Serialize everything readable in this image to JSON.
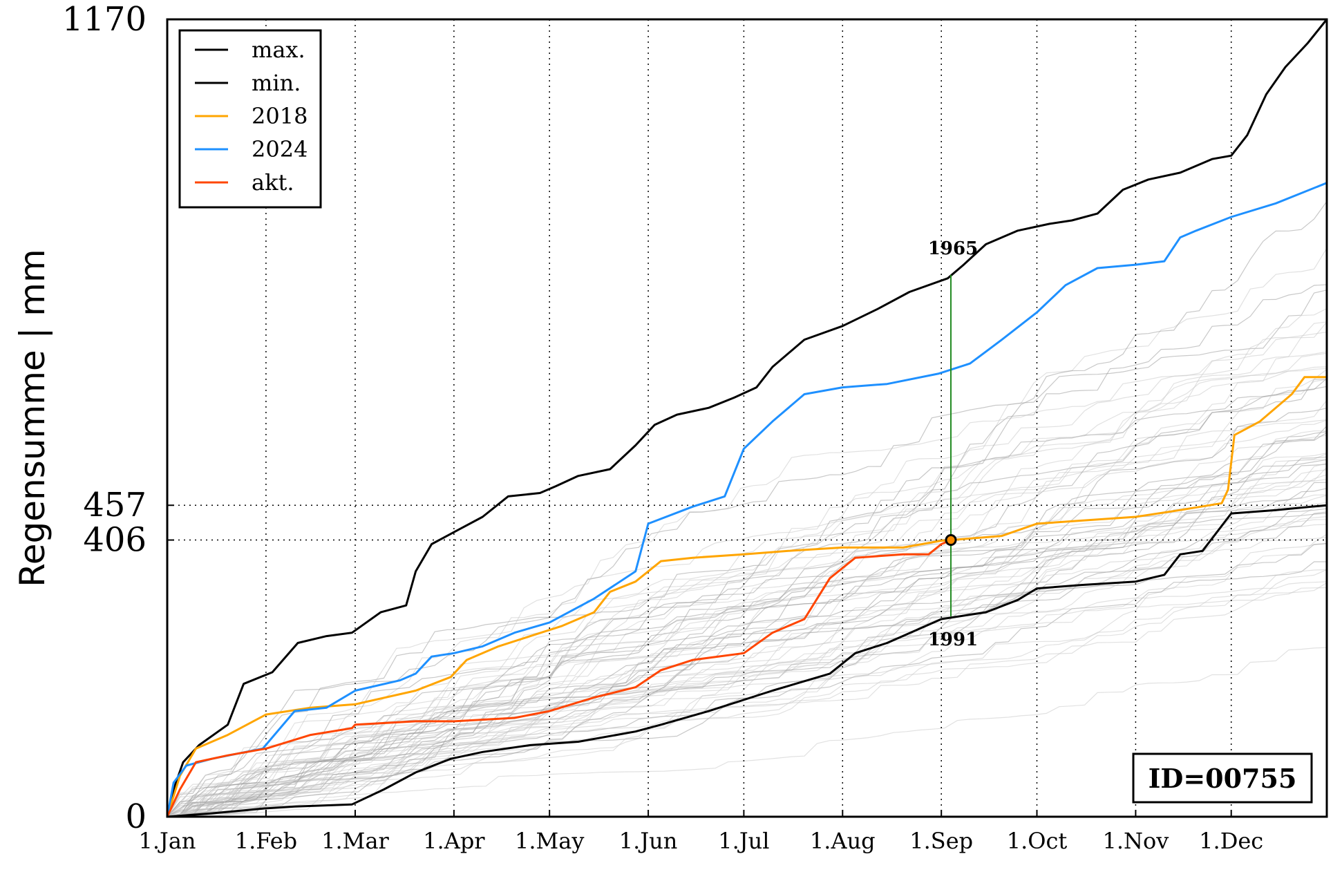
{
  "chart_data": {
    "type": "line",
    "title": "",
    "xlabel": "",
    "ylabel": "Regensumme | mm",
    "x_domain": [
      "1.Jan",
      "31.Dec"
    ],
    "ylim": [
      0,
      1170
    ],
    "x_ticks": [
      "1.Jan",
      "1.Feb",
      "1.Mar",
      "1.Apr",
      "1.May",
      "1.Jun",
      "1.Jul",
      "1.Aug",
      "1.Sep",
      "1.Oct",
      "1.Nov",
      "1.Dec"
    ],
    "y_ticks": [
      0,
      406,
      457,
      1170
    ],
    "grid": true,
    "legend_position": "upper-left",
    "legend": [
      {
        "label": "max.",
        "color": "#000000"
      },
      {
        "label": "min.",
        "color": "#000000"
      },
      {
        "label": "2018",
        "color": "#FFA500"
      },
      {
        "label": "2024",
        "color": "#1E90FF"
      },
      {
        "label": "akt.",
        "color": "#FF4500"
      }
    ],
    "series": [
      {
        "name": "max.",
        "color": "#000000",
        "width": 3,
        "points": [
          [
            "1.Jan",
            0
          ],
          [
            "3.Jan",
            40
          ],
          [
            "6.Jan",
            80
          ],
          [
            "11.Jan",
            105
          ],
          [
            "20.Jan",
            135
          ],
          [
            "25.Jan",
            195
          ],
          [
            "3.Feb",
            212
          ],
          [
            "11.Feb",
            255
          ],
          [
            "20.Feb",
            265
          ],
          [
            "28.Feb",
            270
          ],
          [
            "9.Mar",
            300
          ],
          [
            "17.Mar",
            310
          ],
          [
            "20.Mar",
            360
          ],
          [
            "25.Mar",
            400
          ],
          [
            "2.Apr",
            420
          ],
          [
            "10.Apr",
            440
          ],
          [
            "18.Apr",
            470
          ],
          [
            "28.Apr",
            475
          ],
          [
            "3.May",
            485
          ],
          [
            "10.May",
            500
          ],
          [
            "20.May",
            510
          ],
          [
            "28.May",
            545
          ],
          [
            "3.Jun",
            575
          ],
          [
            "10.Jun",
            590
          ],
          [
            "20.Jun",
            600
          ],
          [
            "28.Jun",
            615
          ],
          [
            "5.Jul",
            630
          ],
          [
            "10.Jul",
            660
          ],
          [
            "20.Jul",
            700
          ],
          [
            "1.Aug",
            720
          ],
          [
            "12.Aug",
            745
          ],
          [
            "22.Aug",
            770
          ],
          [
            "3.Sep",
            790
          ],
          [
            "8.Sep",
            810
          ],
          [
            "15.Sep",
            840
          ],
          [
            "25.Sep",
            860
          ],
          [
            "5.Oct",
            870
          ],
          [
            "12.Oct",
            875
          ],
          [
            "20.Oct",
            885
          ],
          [
            "28.Oct",
            920
          ],
          [
            "5.Nov",
            935
          ],
          [
            "15.Nov",
            945
          ],
          [
            "25.Nov",
            965
          ],
          [
            "1.Dec",
            970
          ],
          [
            "6.Dec",
            1000
          ],
          [
            "12.Dec",
            1060
          ],
          [
            "18.Dec",
            1100
          ],
          [
            "25.Dec",
            1135
          ],
          [
            "31.Dec",
            1170
          ]
        ]
      },
      {
        "name": "min.",
        "color": "#000000",
        "width": 3,
        "points": [
          [
            "1.Jan",
            0
          ],
          [
            "15.Jan",
            5
          ],
          [
            "31.Jan",
            12
          ],
          [
            "10.Feb",
            15
          ],
          [
            "28.Feb",
            18
          ],
          [
            "10.Mar",
            40
          ],
          [
            "20.Mar",
            65
          ],
          [
            "31.Mar",
            85
          ],
          [
            "10.Apr",
            95
          ],
          [
            "25.Apr",
            105
          ],
          [
            "10.May",
            110
          ],
          [
            "28.May",
            125
          ],
          [
            "5.Jun",
            135
          ],
          [
            "20.Jun",
            155
          ],
          [
            "10.Jul",
            185
          ],
          [
            "28.Jul",
            210
          ],
          [
            "5.Aug",
            240
          ],
          [
            "15.Aug",
            255
          ],
          [
            "1.Sep",
            290
          ],
          [
            "15.Sep",
            300
          ],
          [
            "25.Sep",
            318
          ],
          [
            "1.Oct",
            335
          ],
          [
            "15.Oct",
            340
          ],
          [
            "1.Nov",
            345
          ],
          [
            "10.Nov",
            355
          ],
          [
            "15.Nov",
            385
          ],
          [
            "22.Nov",
            390
          ],
          [
            "1.Dec",
            445
          ],
          [
            "15.Dec",
            450
          ],
          [
            "31.Dec",
            457
          ]
        ]
      },
      {
        "name": "2018",
        "color": "#FFA500",
        "width": 3,
        "points": [
          [
            "1.Jan",
            0
          ],
          [
            "5.Jan",
            60
          ],
          [
            "10.Jan",
            100
          ],
          [
            "20.Jan",
            120
          ],
          [
            "1.Feb",
            150
          ],
          [
            "15.Feb",
            160
          ],
          [
            "1.Mar",
            165
          ],
          [
            "20.Mar",
            185
          ],
          [
            "31.Mar",
            205
          ],
          [
            "5.Apr",
            230
          ],
          [
            "15.Apr",
            250
          ],
          [
            "25.Apr",
            265
          ],
          [
            "5.May",
            280
          ],
          [
            "15.May",
            300
          ],
          [
            "20.May",
            330
          ],
          [
            "28.May",
            345
          ],
          [
            "5.Jun",
            375
          ],
          [
            "15.Jun",
            380
          ],
          [
            "1.Jul",
            385
          ],
          [
            "15.Jul",
            390
          ],
          [
            "1.Aug",
            395
          ],
          [
            "20.Aug",
            395
          ],
          [
            "1.Sep",
            405
          ],
          [
            "4.Sep",
            406
          ],
          [
            "20.Sep",
            412
          ],
          [
            "1.Oct",
            430
          ],
          [
            "1.Nov",
            440
          ],
          [
            "15.Nov",
            450
          ],
          [
            "28.Nov",
            460
          ],
          [
            "30.Nov",
            480
          ],
          [
            "2.Dec",
            560
          ],
          [
            "10.Dec",
            580
          ],
          [
            "20.Dec",
            620
          ],
          [
            "24.Dec",
            645
          ],
          [
            "31.Dec",
            645
          ]
        ]
      },
      {
        "name": "2024",
        "color": "#1E90FF",
        "width": 3,
        "points": [
          [
            "1.Jan",
            0
          ],
          [
            "3.Jan",
            50
          ],
          [
            "7.Jan",
            75
          ],
          [
            "15.Jan",
            85
          ],
          [
            "31.Jan",
            100
          ],
          [
            "10.Feb",
            155
          ],
          [
            "20.Feb",
            160
          ],
          [
            "1.Mar",
            185
          ],
          [
            "15.Mar",
            200
          ],
          [
            "20.Mar",
            210
          ],
          [
            "25.Mar",
            235
          ],
          [
            "1.Apr",
            240
          ],
          [
            "10.Apr",
            250
          ],
          [
            "20.Apr",
            270
          ],
          [
            "1.May",
            285
          ],
          [
            "15.May",
            320
          ],
          [
            "28.May",
            360
          ],
          [
            "1.Jun",
            430
          ],
          [
            "15.Jun",
            455
          ],
          [
            "25.Jun",
            470
          ],
          [
            "1.Jul",
            540
          ],
          [
            "10.Jul",
            580
          ],
          [
            "20.Jul",
            620
          ],
          [
            "1.Aug",
            630
          ],
          [
            "15.Aug",
            635
          ],
          [
            "31.Aug",
            650
          ],
          [
            "10.Sep",
            665
          ],
          [
            "20.Sep",
            700
          ],
          [
            "1.Oct",
            740
          ],
          [
            "10.Oct",
            780
          ],
          [
            "20.Oct",
            805
          ],
          [
            "1.Nov",
            810
          ],
          [
            "10.Nov",
            815
          ],
          [
            "15.Nov",
            850
          ],
          [
            "20.Nov",
            860
          ],
          [
            "1.Dec",
            880
          ],
          [
            "15.Dec",
            900
          ],
          [
            "31.Dec",
            930
          ]
        ]
      },
      {
        "name": "akt.",
        "color": "#FF4500",
        "width": 3,
        "points": [
          [
            "1.Jan",
            0
          ],
          [
            "5.Jan",
            40
          ],
          [
            "10.Jan",
            80
          ],
          [
            "20.Jan",
            90
          ],
          [
            "1.Feb",
            100
          ],
          [
            "15.Feb",
            120
          ],
          [
            "28.Feb",
            130
          ],
          [
            "1.Mar",
            135
          ],
          [
            "20.Mar",
            140
          ],
          [
            "1.Apr",
            140
          ],
          [
            "20.Apr",
            145
          ],
          [
            "1.May",
            155
          ],
          [
            "15.May",
            175
          ],
          [
            "28.May",
            190
          ],
          [
            "5.Jun",
            215
          ],
          [
            "15.Jun",
            230
          ],
          [
            "1.Jul",
            240
          ],
          [
            "10.Jul",
            270
          ],
          [
            "20.Jul",
            290
          ],
          [
            "28.Jul",
            350
          ],
          [
            "5.Aug",
            380
          ],
          [
            "20.Aug",
            385
          ],
          [
            "28.Aug",
            385
          ],
          [
            "1.Sep",
            400
          ],
          [
            "4.Sep",
            406
          ]
        ]
      }
    ],
    "annotations": [
      {
        "text": "1965",
        "x": "4.Sep",
        "y": 795
      },
      {
        "text": "1991",
        "x": "4.Sep",
        "y": 294
      }
    ],
    "marker": {
      "x": "4.Sep",
      "y": 406
    },
    "id_label": "ID=00755"
  }
}
